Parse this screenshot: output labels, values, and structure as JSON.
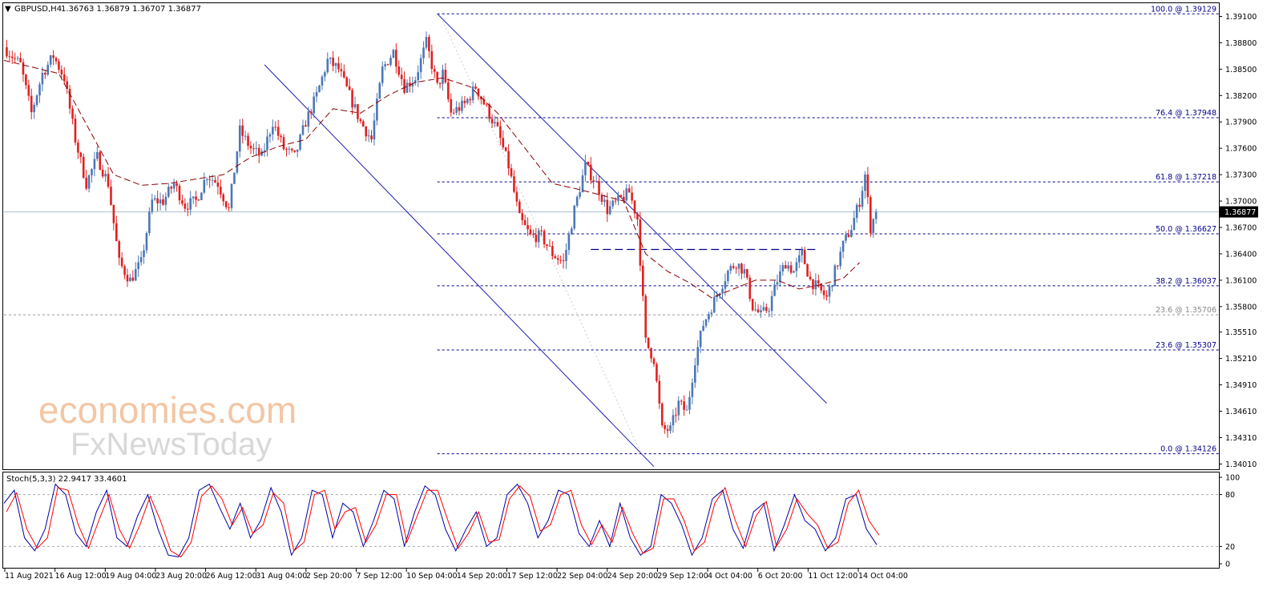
{
  "header": {
    "symbol": "GBPUSD,H4",
    "ohlc": "1.36763 1.36879 1.36707 1.36877"
  },
  "watermark": {
    "line1": "economies.com",
    "line2": "FxNewsToday"
  },
  "colors": {
    "bull": "#4b78b5",
    "bear": "#e02020",
    "ma": "#8b0000",
    "fib": "#00008b",
    "channel": "#1c1cb0",
    "stoch_main": "#0000a0",
    "stoch_signal": "#ff0000",
    "current_price_bg": "#000000"
  },
  "chart_data": [
    {
      "type": "candlestick",
      "title": "GBPUSD,H4",
      "ylim": [
        1.3395,
        1.3925
      ],
      "price_ticks": [
        "1.39100",
        "1.38800",
        "1.38500",
        "1.38200",
        "1.37900",
        "1.37600",
        "1.37300",
        "1.37000",
        "1.36700",
        "1.36400",
        "1.36100",
        "1.35800",
        "1.35510",
        "1.35210",
        "1.34910",
        "1.34610",
        "1.34310",
        "1.34010"
      ],
      "time_labels": [
        "11 Aug 2021",
        "16 Aug 12:00",
        "19 Aug 04:00",
        "23 Aug 20:00",
        "26 Aug 12:00",
        "31 Aug 04:00",
        "2 Sep 20:00",
        "7 Sep 12:00",
        "10 Sep 04:00",
        "14 Sep 20:00",
        "17 Sep 12:00",
        "22 Sep 04:00",
        "24 Sep 20:00",
        "29 Sep 12:00",
        "4 Oct 04:00",
        "6 Oct 20:00",
        "11 Oct 12:00",
        "14 Oct 04:00"
      ],
      "current_price": "1.36877",
      "fibonacci": [
        {
          "label": "100.0 @ 1.39129",
          "price": 1.39129
        },
        {
          "label": "76.4 @ 1.37948",
          "price": 1.37948
        },
        {
          "label": "61.8 @ 1.37218",
          "price": 1.37218
        },
        {
          "label": "50.0 @ 1.36627",
          "price": 1.36627
        },
        {
          "label": "38.2 @ 1.36037",
          "price": 1.36037
        },
        {
          "label": "23.6 @ 1.35307",
          "price": 1.35307
        },
        {
          "label": "0.0 @ 1.34126",
          "price": 1.34126
        }
      ],
      "fib_gray": {
        "label": "23.6 @ 1.35706",
        "price": 1.35706
      },
      "resistance_dashed": 1.3645,
      "close_path": [
        [
          0,
          1.3875
        ],
        [
          6,
          1.3855
        ],
        [
          10,
          1.38
        ],
        [
          14,
          1.3845
        ],
        [
          18,
          1.3865
        ],
        [
          22,
          1.384
        ],
        [
          26,
          1.377
        ],
        [
          30,
          1.372
        ],
        [
          34,
          1.375
        ],
        [
          38,
          1.372
        ],
        [
          42,
          1.363
        ],
        [
          46,
          1.361
        ],
        [
          50,
          1.363
        ],
        [
          54,
          1.37
        ],
        [
          58,
          1.37
        ],
        [
          62,
          1.372
        ],
        [
          66,
          1.3695
        ],
        [
          70,
          1.37
        ],
        [
          74,
          1.373
        ],
        [
          78,
          1.372
        ],
        [
          82,
          1.369
        ],
        [
          86,
          1.378
        ],
        [
          90,
          1.376
        ],
        [
          94,
          1.375
        ],
        [
          98,
          1.379
        ],
        [
          102,
          1.376
        ],
        [
          106,
          1.375
        ],
        [
          110,
          1.379
        ],
        [
          114,
          1.382
        ],
        [
          118,
          1.386
        ],
        [
          122,
          1.385
        ],
        [
          126,
          1.382
        ],
        [
          130,
          1.379
        ],
        [
          134,
          1.377
        ],
        [
          138,
          1.385
        ],
        [
          142,
          1.387
        ],
        [
          146,
          1.383
        ],
        [
          150,
          1.384
        ],
        [
          154,
          1.388
        ],
        [
          158,
          1.383
        ],
        [
          160,
          1.3845
        ],
        [
          163,
          1.38
        ],
        [
          168,
          1.381
        ],
        [
          172,
          1.383
        ],
        [
          176,
          1.3805
        ],
        [
          180,
          1.378
        ],
        [
          184,
          1.374
        ],
        [
          188,
          1.368
        ],
        [
          192,
          1.366
        ],
        [
          196,
          1.366
        ],
        [
          200,
          1.364
        ],
        [
          204,
          1.363
        ],
        [
          208,
          1.369
        ],
        [
          212,
          1.374
        ],
        [
          216,
          1.372
        ],
        [
          220,
          1.369
        ],
        [
          224,
          1.37
        ],
        [
          228,
          1.371
        ],
        [
          231,
          1.368
        ],
        [
          234,
          1.354
        ],
        [
          237,
          1.352
        ],
        [
          240,
          1.344
        ],
        [
          243,
          1.344
        ],
        [
          246,
          1.347
        ],
        [
          249,
          1.346
        ],
        [
          252,
          1.352
        ],
        [
          255,
          1.356
        ],
        [
          258,
          1.358
        ],
        [
          261,
          1.36
        ],
        [
          264,
          1.362
        ],
        [
          267,
          1.363
        ],
        [
          270,
          1.362
        ],
        [
          273,
          1.358
        ],
        [
          276,
          1.357
        ],
        [
          279,
          1.358
        ],
        [
          282,
          1.361
        ],
        [
          285,
          1.363
        ],
        [
          288,
          1.362
        ],
        [
          291,
          1.364
        ],
        [
          294,
          1.361
        ],
        [
          297,
          1.36
        ],
        [
          300,
          1.359
        ],
        [
          303,
          1.362
        ],
        [
          306,
          1.365
        ],
        [
          309,
          1.367
        ],
        [
          312,
          1.37
        ],
        [
          314,
          1.373
        ],
        [
          316,
          1.367
        ],
        [
          318,
          1.3688
        ]
      ],
      "ma_path": [
        [
          0,
          1.386
        ],
        [
          20,
          1.3845
        ],
        [
          40,
          1.373
        ],
        [
          50,
          1.3718
        ],
        [
          60,
          1.372
        ],
        [
          70,
          1.3725
        ],
        [
          80,
          1.373
        ],
        [
          90,
          1.375
        ],
        [
          100,
          1.3762
        ],
        [
          110,
          1.377
        ],
        [
          120,
          1.3805
        ],
        [
          130,
          1.38
        ],
        [
          140,
          1.382
        ],
        [
          150,
          1.3835
        ],
        [
          160,
          1.384
        ],
        [
          170,
          1.383
        ],
        [
          180,
          1.38
        ],
        [
          190,
          1.376
        ],
        [
          200,
          1.372
        ],
        [
          210,
          1.3713
        ],
        [
          220,
          1.3705
        ],
        [
          226,
          1.37
        ],
        [
          234,
          1.364
        ],
        [
          242,
          1.362
        ],
        [
          250,
          1.3607
        ],
        [
          258,
          1.359
        ],
        [
          266,
          1.36
        ],
        [
          274,
          1.361
        ],
        [
          282,
          1.361
        ],
        [
          290,
          1.36
        ],
        [
          298,
          1.3605
        ],
        [
          306,
          1.3612
        ],
        [
          312,
          1.363
        ]
      ]
    },
    {
      "type": "line",
      "title": "Stoch(5,3,3) 22.9417 33.4601",
      "ylim": [
        0,
        100
      ],
      "levels": [
        80,
        20
      ],
      "y_ticks": [
        "100",
        "80",
        "20",
        "0"
      ],
      "series": [
        {
          "values": [
            70,
            85,
            30,
            15,
            40,
            92,
            80,
            35,
            20,
            60,
            85,
            30,
            20,
            55,
            80,
            40,
            10,
            8,
            30,
            85,
            92,
            65,
            40,
            70,
            30,
            50,
            88,
            60,
            10,
            30,
            85,
            80,
            30,
            70,
            60,
            20,
            50,
            85,
            75,
            20,
            60,
            90,
            80,
            40,
            15,
            40,
            60,
            20,
            30,
            80,
            92,
            70,
            30,
            50,
            85,
            80,
            35,
            20,
            50,
            20,
            70,
            30,
            10,
            20,
            80,
            70,
            45,
            10,
            30,
            75,
            85,
            40,
            18,
            60,
            70,
            15,
            45,
            80,
            50,
            40,
            15,
            30,
            75,
            80,
            40,
            22
          ]
        },
        {
          "values": [
            60,
            82,
            40,
            18,
            30,
            88,
            85,
            45,
            18,
            50,
            80,
            40,
            18,
            45,
            78,
            50,
            15,
            8,
            25,
            78,
            90,
            75,
            45,
            65,
            35,
            45,
            82,
            70,
            15,
            25,
            80,
            85,
            40,
            60,
            65,
            25,
            45,
            80,
            80,
            25,
            55,
            85,
            85,
            50,
            18,
            35,
            60,
            25,
            28,
            75,
            90,
            78,
            38,
            45,
            80,
            85,
            45,
            22,
            45,
            25,
            65,
            35,
            12,
            18,
            75,
            75,
            50,
            15,
            25,
            70,
            88,
            50,
            20,
            55,
            72,
            20,
            40,
            75,
            58,
            45,
            18,
            25,
            70,
            85,
            50,
            33
          ]
        }
      ]
    }
  ]
}
